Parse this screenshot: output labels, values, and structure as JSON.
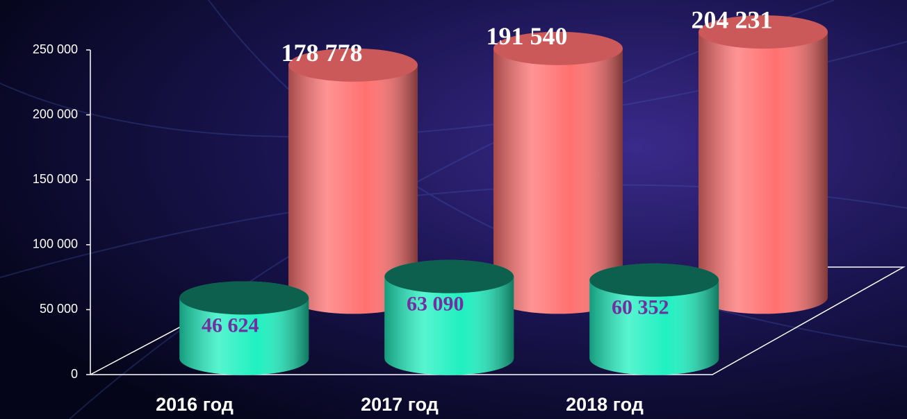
{
  "chart_data": {
    "type": "bar3d",
    "categories": [
      "2016 год",
      "2017 год",
      "2018 год"
    ],
    "series": [
      {
        "color": "#ff7070",
        "label_color": "#ffffff",
        "values": [
          178778,
          191540,
          204231
        ],
        "value_labels": [
          "178 778",
          "191 540",
          "204 231"
        ]
      },
      {
        "color": "#20f0c0",
        "label_color": "#7030a0",
        "values": [
          46624,
          63090,
          60352
        ],
        "value_labels": [
          "46 624",
          "63 090",
          "60 352"
        ]
      }
    ],
    "ylim": [
      0,
      250000
    ],
    "yticks": [
      0,
      {
        "value": 50000,
        "label": "50 000"
      },
      {
        "value": 100000,
        "label": "100 000"
      },
      {
        "value": 150000,
        "label": "150 000"
      },
      {
        "value": 200000,
        "label": "200 000"
      },
      {
        "value": 250000,
        "label": "250 000"
      }
    ]
  }
}
